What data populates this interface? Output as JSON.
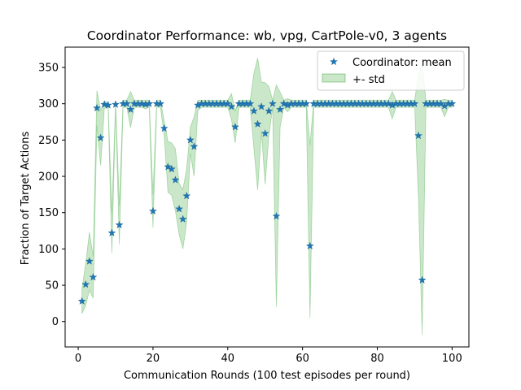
{
  "chart_data": {
    "type": "scatter",
    "title": "Coordinator Performance: wb, vpg, CartPole-v0, 3 agents",
    "xlabel": "Communication Rounds (100 test episodes per round)",
    "ylabel": "Fraction of Target Actions",
    "xlim": [
      -3.5,
      104.5
    ],
    "ylim": [
      -35,
      378
    ],
    "xticks": [
      0,
      20,
      40,
      60,
      80,
      100
    ],
    "yticks": [
      0,
      50,
      100,
      150,
      200,
      250,
      300,
      350
    ],
    "grid": false,
    "legend_position": "top-right",
    "colors": {
      "mean": "#1f77b4",
      "std_fill": "#2ca02c"
    },
    "series": [
      {
        "name": "Coordinator: mean",
        "kind": "star-markers"
      },
      {
        "name": "+- std",
        "kind": "band"
      }
    ],
    "x": [
      1,
      2,
      3,
      4,
      5,
      6,
      7,
      8,
      9,
      10,
      11,
      12,
      13,
      14,
      15,
      16,
      17,
      18,
      19,
      20,
      21,
      22,
      23,
      24,
      25,
      26,
      27,
      28,
      29,
      30,
      31,
      32,
      33,
      34,
      35,
      36,
      37,
      38,
      39,
      40,
      41,
      42,
      43,
      44,
      45,
      46,
      47,
      48,
      49,
      50,
      51,
      52,
      53,
      54,
      55,
      56,
      57,
      58,
      59,
      60,
      61,
      62,
      63,
      64,
      65,
      66,
      67,
      68,
      69,
      70,
      71,
      72,
      73,
      74,
      75,
      76,
      77,
      78,
      79,
      80,
      81,
      82,
      83,
      84,
      85,
      86,
      87,
      88,
      89,
      90,
      91,
      92,
      93,
      94,
      95,
      96,
      97,
      98,
      99,
      100
    ],
    "mean": [
      28,
      51,
      83,
      61,
      294,
      253,
      299,
      298,
      122,
      299,
      133,
      300,
      300,
      292,
      300,
      300,
      300,
      299,
      300,
      152,
      300,
      300,
      266,
      213,
      210,
      195,
      155,
      141,
      173,
      250,
      241,
      298,
      300,
      300,
      300,
      300,
      300,
      300,
      300,
      300,
      296,
      268,
      300,
      300,
      300,
      300,
      290,
      272,
      296,
      259,
      290,
      300,
      145,
      292,
      300,
      298,
      300,
      300,
      300,
      300,
      300,
      104,
      300,
      300,
      300,
      300,
      300,
      300,
      300,
      300,
      300,
      300,
      300,
      300,
      300,
      300,
      300,
      300,
      300,
      300,
      300,
      300,
      300,
      298,
      300,
      300,
      300,
      300,
      300,
      300,
      256,
      57,
      300,
      300,
      300,
      300,
      300,
      297,
      300,
      300
    ],
    "upper": [
      45,
      80,
      123,
      90,
      318,
      291,
      304,
      302,
      150,
      304,
      160,
      305,
      305,
      317,
      305,
      305,
      305,
      305,
      305,
      175,
      305,
      305,
      276,
      248,
      246,
      238,
      190,
      182,
      210,
      268,
      282,
      305,
      305,
      305,
      305,
      305,
      305,
      305,
      305,
      305,
      314,
      290,
      305,
      305,
      305,
      305,
      342,
      363,
      330,
      329,
      324,
      305,
      326,
      316,
      305,
      307,
      305,
      305,
      305,
      305,
      305,
      243,
      305,
      305,
      305,
      305,
      305,
      305,
      305,
      305,
      305,
      305,
      305,
      305,
      305,
      305,
      305,
      305,
      305,
      305,
      305,
      305,
      305,
      317,
      305,
      305,
      305,
      305,
      305,
      305,
      340,
      355,
      305,
      305,
      305,
      305,
      305,
      306,
      305,
      305
    ],
    "lower": [
      11,
      22,
      43,
      32,
      270,
      215,
      294,
      294,
      94,
      294,
      106,
      295,
      295,
      267,
      295,
      295,
      295,
      293,
      295,
      129,
      295,
      295,
      256,
      178,
      174,
      152,
      120,
      100,
      136,
      232,
      200,
      291,
      295,
      295,
      295,
      295,
      295,
      295,
      295,
      295,
      278,
      246,
      295,
      295,
      295,
      295,
      238,
      181,
      262,
      189,
      256,
      295,
      20,
      268,
      295,
      289,
      295,
      295,
      295,
      295,
      295,
      5,
      295,
      295,
      295,
      295,
      295,
      295,
      295,
      295,
      295,
      295,
      295,
      295,
      295,
      295,
      295,
      295,
      295,
      295,
      295,
      295,
      295,
      279,
      295,
      295,
      295,
      295,
      295,
      295,
      172,
      -18,
      295,
      295,
      295,
      295,
      295,
      282,
      295,
      295
    ]
  }
}
